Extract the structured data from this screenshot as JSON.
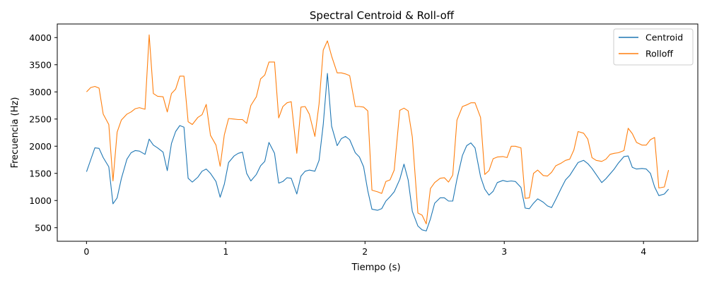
{
  "chart_data": {
    "type": "line",
    "title": "Spectral Centroid & Roll-off",
    "xlabel": "Tiempo (s)",
    "ylabel": "Frecuencia (Hz)",
    "xlim": [
      -0.21,
      4.39
    ],
    "ylim": [
      250,
      4250
    ],
    "xticks": [
      0,
      1,
      2,
      3,
      4
    ],
    "xtick_labels": [
      "0",
      "1",
      "2",
      "3",
      "4"
    ],
    "yticks": [
      500,
      1000,
      1500,
      2000,
      2500,
      3000,
      3500,
      4000
    ],
    "ytick_labels": [
      "500",
      "1000",
      "1500",
      "2000",
      "2500",
      "3000",
      "3500",
      "4000"
    ],
    "grid": false,
    "legend_position": "top-right",
    "colors": {
      "centroid": "#1f77b4",
      "rolloff": "#ff7f0e"
    },
    "series": [
      {
        "name": "Centroid",
        "color": "#1f77b4",
        "points": [
          [
            0.0,
            1530
          ],
          [
            0.03,
            1750
          ],
          [
            0.06,
            1970
          ],
          [
            0.09,
            1960
          ],
          [
            0.12,
            1790
          ],
          [
            0.16,
            1620
          ],
          [
            0.19,
            940
          ],
          [
            0.22,
            1050
          ],
          [
            0.25,
            1400
          ],
          [
            0.29,
            1760
          ],
          [
            0.32,
            1880
          ],
          [
            0.35,
            1920
          ],
          [
            0.38,
            1910
          ],
          [
            0.42,
            1850
          ],
          [
            0.45,
            2130
          ],
          [
            0.48,
            2020
          ],
          [
            0.51,
            1970
          ],
          [
            0.55,
            1890
          ],
          [
            0.58,
            1550
          ],
          [
            0.61,
            2050
          ],
          [
            0.64,
            2270
          ],
          [
            0.67,
            2380
          ],
          [
            0.7,
            2350
          ],
          [
            0.73,
            1410
          ],
          [
            0.76,
            1340
          ],
          [
            0.8,
            1430
          ],
          [
            0.83,
            1540
          ],
          [
            0.86,
            1580
          ],
          [
            0.89,
            1500
          ],
          [
            0.93,
            1350
          ],
          [
            0.96,
            1060
          ],
          [
            0.99,
            1300
          ],
          [
            1.02,
            1700
          ],
          [
            1.06,
            1820
          ],
          [
            1.09,
            1870
          ],
          [
            1.12,
            1890
          ],
          [
            1.15,
            1500
          ],
          [
            1.18,
            1360
          ],
          [
            1.22,
            1480
          ],
          [
            1.25,
            1640
          ],
          [
            1.28,
            1720
          ],
          [
            1.31,
            2070
          ],
          [
            1.35,
            1870
          ],
          [
            1.38,
            1320
          ],
          [
            1.41,
            1350
          ],
          [
            1.44,
            1420
          ],
          [
            1.47,
            1410
          ],
          [
            1.51,
            1120
          ],
          [
            1.54,
            1450
          ],
          [
            1.57,
            1540
          ],
          [
            1.6,
            1560
          ],
          [
            1.64,
            1540
          ],
          [
            1.67,
            1740
          ],
          [
            1.7,
            2400
          ],
          [
            1.73,
            3340
          ],
          [
            1.76,
            2370
          ],
          [
            1.8,
            2010
          ],
          [
            1.83,
            2140
          ],
          [
            1.86,
            2180
          ],
          [
            1.89,
            2120
          ],
          [
            1.93,
            1880
          ],
          [
            1.96,
            1800
          ],
          [
            1.99,
            1620
          ],
          [
            2.02,
            1180
          ],
          [
            2.05,
            840
          ],
          [
            2.09,
            820
          ],
          [
            2.12,
            850
          ],
          [
            2.15,
            990
          ],
          [
            2.18,
            1070
          ],
          [
            2.21,
            1160
          ],
          [
            2.25,
            1390
          ],
          [
            2.28,
            1670
          ],
          [
            2.31,
            1380
          ],
          [
            2.34,
            800
          ],
          [
            2.38,
            530
          ],
          [
            2.41,
            460
          ],
          [
            2.44,
            440
          ],
          [
            2.47,
            660
          ],
          [
            2.5,
            950
          ],
          [
            2.54,
            1050
          ],
          [
            2.57,
            1050
          ],
          [
            2.6,
            990
          ],
          [
            2.63,
            990
          ],
          [
            2.66,
            1390
          ],
          [
            2.7,
            1830
          ],
          [
            2.73,
            2010
          ],
          [
            2.76,
            2060
          ],
          [
            2.79,
            1970
          ],
          [
            2.83,
            1440
          ],
          [
            2.86,
            1210
          ],
          [
            2.89,
            1100
          ],
          [
            2.92,
            1170
          ],
          [
            2.95,
            1330
          ],
          [
            2.99,
            1370
          ],
          [
            3.02,
            1350
          ],
          [
            3.05,
            1360
          ],
          [
            3.08,
            1350
          ],
          [
            3.12,
            1240
          ],
          [
            3.15,
            860
          ],
          [
            3.18,
            850
          ],
          [
            3.21,
            950
          ],
          [
            3.24,
            1030
          ],
          [
            3.28,
            970
          ],
          [
            3.31,
            900
          ],
          [
            3.34,
            870
          ],
          [
            3.37,
            1020
          ],
          [
            3.41,
            1230
          ],
          [
            3.44,
            1380
          ],
          [
            3.47,
            1460
          ],
          [
            3.5,
            1580
          ],
          [
            3.53,
            1700
          ],
          [
            3.57,
            1740
          ],
          [
            3.6,
            1680
          ],
          [
            3.63,
            1590
          ],
          [
            3.66,
            1480
          ],
          [
            3.7,
            1330
          ],
          [
            3.73,
            1400
          ],
          [
            3.76,
            1490
          ],
          [
            3.79,
            1580
          ],
          [
            3.82,
            1690
          ],
          [
            3.86,
            1810
          ],
          [
            3.89,
            1820
          ],
          [
            3.92,
            1610
          ],
          [
            3.95,
            1580
          ],
          [
            3.99,
            1590
          ],
          [
            4.02,
            1580
          ],
          [
            4.05,
            1500
          ],
          [
            4.08,
            1250
          ],
          [
            4.11,
            1090
          ],
          [
            4.15,
            1120
          ],
          [
            4.18,
            1210
          ]
        ]
      },
      {
        "name": "Rolloff",
        "color": "#ff7f0e",
        "points": [
          [
            0.0,
            3000
          ],
          [
            0.03,
            3080
          ],
          [
            0.06,
            3100
          ],
          [
            0.09,
            3070
          ],
          [
            0.12,
            2590
          ],
          [
            0.16,
            2400
          ],
          [
            0.19,
            1360
          ],
          [
            0.22,
            2260
          ],
          [
            0.25,
            2480
          ],
          [
            0.29,
            2590
          ],
          [
            0.32,
            2630
          ],
          [
            0.35,
            2690
          ],
          [
            0.38,
            2710
          ],
          [
            0.42,
            2680
          ],
          [
            0.45,
            4050
          ],
          [
            0.48,
            2970
          ],
          [
            0.51,
            2920
          ],
          [
            0.55,
            2910
          ],
          [
            0.58,
            2630
          ],
          [
            0.61,
            2970
          ],
          [
            0.64,
            3050
          ],
          [
            0.67,
            3290
          ],
          [
            0.7,
            3290
          ],
          [
            0.73,
            2450
          ],
          [
            0.76,
            2400
          ],
          [
            0.8,
            2530
          ],
          [
            0.83,
            2580
          ],
          [
            0.86,
            2770
          ],
          [
            0.89,
            2200
          ],
          [
            0.93,
            2020
          ],
          [
            0.96,
            1630
          ],
          [
            0.99,
            2210
          ],
          [
            1.02,
            2510
          ],
          [
            1.06,
            2500
          ],
          [
            1.09,
            2490
          ],
          [
            1.12,
            2490
          ],
          [
            1.15,
            2420
          ],
          [
            1.18,
            2750
          ],
          [
            1.22,
            2910
          ],
          [
            1.25,
            3240
          ],
          [
            1.28,
            3310
          ],
          [
            1.31,
            3550
          ],
          [
            1.35,
            3550
          ],
          [
            1.38,
            2520
          ],
          [
            1.41,
            2730
          ],
          [
            1.44,
            2800
          ],
          [
            1.47,
            2820
          ],
          [
            1.51,
            1870
          ],
          [
            1.54,
            2720
          ],
          [
            1.57,
            2730
          ],
          [
            1.6,
            2590
          ],
          [
            1.64,
            2180
          ],
          [
            1.67,
            2780
          ],
          [
            1.7,
            3770
          ],
          [
            1.73,
            3940
          ],
          [
            1.76,
            3660
          ],
          [
            1.8,
            3350
          ],
          [
            1.83,
            3350
          ],
          [
            1.86,
            3330
          ],
          [
            1.89,
            3300
          ],
          [
            1.93,
            2730
          ],
          [
            1.96,
            2730
          ],
          [
            1.99,
            2720
          ],
          [
            2.02,
            2650
          ],
          [
            2.05,
            1190
          ],
          [
            2.09,
            1160
          ],
          [
            2.12,
            1130
          ],
          [
            2.15,
            1350
          ],
          [
            2.18,
            1380
          ],
          [
            2.21,
            1560
          ],
          [
            2.25,
            2660
          ],
          [
            2.28,
            2700
          ],
          [
            2.31,
            2650
          ],
          [
            2.34,
            2170
          ],
          [
            2.38,
            770
          ],
          [
            2.41,
            730
          ],
          [
            2.44,
            570
          ],
          [
            2.47,
            1220
          ],
          [
            2.5,
            1330
          ],
          [
            2.54,
            1410
          ],
          [
            2.57,
            1420
          ],
          [
            2.6,
            1340
          ],
          [
            2.63,
            1470
          ],
          [
            2.66,
            2480
          ],
          [
            2.7,
            2730
          ],
          [
            2.73,
            2760
          ],
          [
            2.76,
            2800
          ],
          [
            2.79,
            2800
          ],
          [
            2.83,
            2530
          ],
          [
            2.86,
            1480
          ],
          [
            2.89,
            1550
          ],
          [
            2.92,
            1770
          ],
          [
            2.95,
            1800
          ],
          [
            2.99,
            1810
          ],
          [
            3.02,
            1790
          ],
          [
            3.05,
            2000
          ],
          [
            3.08,
            2000
          ],
          [
            3.12,
            1970
          ],
          [
            3.15,
            1040
          ],
          [
            3.18,
            1050
          ],
          [
            3.21,
            1500
          ],
          [
            3.24,
            1560
          ],
          [
            3.28,
            1460
          ],
          [
            3.31,
            1450
          ],
          [
            3.34,
            1520
          ],
          [
            3.37,
            1640
          ],
          [
            3.41,
            1690
          ],
          [
            3.44,
            1740
          ],
          [
            3.47,
            1760
          ],
          [
            3.5,
            1930
          ],
          [
            3.53,
            2270
          ],
          [
            3.57,
            2240
          ],
          [
            3.6,
            2130
          ],
          [
            3.63,
            1790
          ],
          [
            3.66,
            1740
          ],
          [
            3.7,
            1720
          ],
          [
            3.73,
            1760
          ],
          [
            3.76,
            1850
          ],
          [
            3.79,
            1870
          ],
          [
            3.82,
            1880
          ],
          [
            3.86,
            1920
          ],
          [
            3.89,
            2330
          ],
          [
            3.92,
            2230
          ],
          [
            3.95,
            2070
          ],
          [
            3.99,
            2020
          ],
          [
            4.02,
            2020
          ],
          [
            4.05,
            2120
          ],
          [
            4.08,
            2160
          ],
          [
            4.11,
            1230
          ],
          [
            4.15,
            1250
          ],
          [
            4.18,
            1560
          ]
        ]
      }
    ]
  }
}
